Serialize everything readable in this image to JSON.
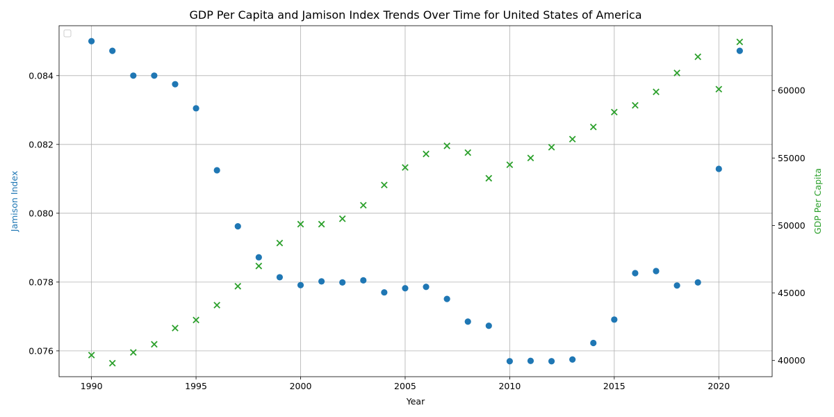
{
  "chart_data": {
    "type": "scatter",
    "title": "GDP Per Capita and Jamison Index Trends Over Time for United States of America",
    "xlabel": "Year",
    "ylabel_left": "Jamison Index",
    "ylabel_right": "GDP Per Capita",
    "xlim": [
      1988.45,
      2022.55
    ],
    "ylim_left": [
      0.07525,
      0.08545
    ],
    "ylim_right": [
      38800,
      64800
    ],
    "x_ticks": [
      1990,
      1995,
      2000,
      2005,
      2010,
      2015,
      2020
    ],
    "y_ticks_left": [
      0.076,
      0.078,
      0.08,
      0.082,
      0.084
    ],
    "y_ticks_left_labels": [
      "0.076",
      "0.078",
      "0.080",
      "0.082",
      "0.084"
    ],
    "y_ticks_right": [
      40000,
      45000,
      50000,
      55000,
      60000
    ],
    "grid": true,
    "legend_position": "upper-left",
    "series": [
      {
        "axis": "left",
        "marker": "circle",
        "color": "#1f77b4",
        "x": [
          1990,
          1991,
          1992,
          1993,
          1994,
          1995,
          1996,
          1997,
          1998,
          1999,
          2000,
          2001,
          2002,
          2003,
          2004,
          2005,
          2006,
          2007,
          2008,
          2009,
          2010,
          2011,
          2012,
          2013,
          2014,
          2015,
          2016,
          2017,
          2018,
          2019,
          2020,
          2021
        ],
        "y": [
          0.085,
          0.08472,
          0.084,
          0.084,
          0.08375,
          0.08305,
          0.08125,
          0.07962,
          0.07872,
          0.07814,
          0.07791,
          0.07802,
          0.07799,
          0.07805,
          0.0777,
          0.07782,
          0.07786,
          0.07751,
          0.07685,
          0.07673,
          0.0757,
          0.07571,
          0.0757,
          0.07575,
          0.07623,
          0.07691,
          0.07826,
          0.07832,
          0.0779,
          0.07799,
          0.08129,
          0.08472
        ]
      },
      {
        "axis": "right",
        "marker": "x",
        "color": "#2ca02c",
        "x": [
          1990,
          1991,
          1992,
          1993,
          1994,
          1995,
          1996,
          1997,
          1998,
          1999,
          2000,
          2001,
          2002,
          2003,
          2004,
          2005,
          2006,
          2007,
          2008,
          2009,
          2010,
          2011,
          2012,
          2013,
          2014,
          2015,
          2016,
          2017,
          2018,
          2019,
          2020,
          2021
        ],
        "y": [
          40400,
          39800,
          40600,
          41200,
          42400,
          43000,
          44100,
          45500,
          47000,
          48700,
          50100,
          50100,
          50500,
          51500,
          53000,
          54300,
          55300,
          55900,
          55400,
          53500,
          54500,
          55000,
          55800,
          56400,
          57300,
          58400,
          58900,
          59900,
          61300,
          62500,
          60100,
          63600
        ]
      }
    ]
  }
}
